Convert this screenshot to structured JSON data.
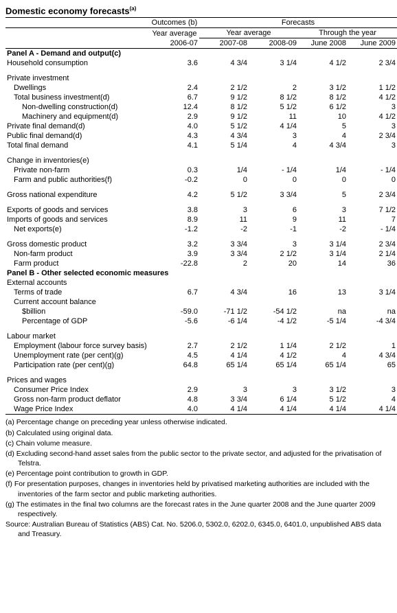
{
  "title": "Domestic economy forecasts",
  "title_sup": "(a)",
  "header": {
    "outcomes": "Outcomes (b)",
    "forecasts": "Forecasts",
    "year_average": "Year average",
    "through_year": "Through the year",
    "y06_07": "2006-07",
    "y07_08": "2007-08",
    "y08_09": "2008-09",
    "jun08": "June 2008",
    "jun09": "June 2009"
  },
  "panelA": "Panel A - Demand and output(c)",
  "panelB": "Panel B - Other selected economic measures",
  "rows": {
    "household_consumption": {
      "label": "Household consumption",
      "v": [
        "3.6",
        "4 3/4",
        "3 1/4",
        "4 1/2",
        "2 3/4"
      ]
    },
    "private_investment": {
      "label": "Private investment"
    },
    "dwellings": {
      "label": "Dwellings",
      "v": [
        "2.4",
        "2 1/2",
        "2",
        "3 1/2",
        "1 1/2"
      ]
    },
    "total_business_investment": {
      "label": "Total business investment(d)",
      "v": [
        "6.7",
        "9 1/2",
        "8 1/2",
        "8 1/2",
        "4 1/2"
      ]
    },
    "non_dwelling_construction": {
      "label": "Non-dwelling construction(d)",
      "v": [
        "12.4",
        "8 1/2",
        "5 1/2",
        "6 1/2",
        "3"
      ]
    },
    "machinery_equipment": {
      "label": "Machinery and equipment(d)",
      "v": [
        "2.9",
        "9 1/2",
        "11",
        "10",
        "4 1/2"
      ]
    },
    "private_final_demand": {
      "label": "Private final demand(d)",
      "v": [
        "4.0",
        "5 1/2",
        "4 1/4",
        "5",
        "3"
      ]
    },
    "public_final_demand": {
      "label": "Public final demand(d)",
      "v": [
        "4.3",
        "4 3/4",
        "3",
        "4",
        "2 3/4"
      ]
    },
    "total_final_demand": {
      "label": "Total final demand",
      "v": [
        "4.1",
        "5 1/4",
        "4",
        "4 3/4",
        "3"
      ]
    },
    "change_inventories": {
      "label": "Change in inventories(e)"
    },
    "private_non_farm": {
      "label": "Private non-farm",
      "v": [
        "0.3",
        "1/4",
        "- 1/4",
        "1/4",
        "- 1/4"
      ]
    },
    "farm_public": {
      "label": "Farm and public authorities(f)",
      "v": [
        "-0.2",
        "0",
        "0",
        "0",
        "0"
      ]
    },
    "gne": {
      "label": "Gross national expenditure",
      "v": [
        "4.2",
        "5 1/2",
        "3 3/4",
        "5",
        "2 3/4"
      ]
    },
    "exports": {
      "label": "Exports of goods and services",
      "v": [
        "3.8",
        "3",
        "6",
        "3",
        "7 1/2"
      ]
    },
    "imports": {
      "label": "Imports of goods and services",
      "v": [
        "8.9",
        "11",
        "9",
        "11",
        "7"
      ]
    },
    "net_exports": {
      "label": "Net exports(e)",
      "v": [
        "-1.2",
        "-2",
        "-1",
        "-2",
        "- 1/4"
      ]
    },
    "gdp": {
      "label": "Gross domestic product",
      "v": [
        "3.2",
        "3 3/4",
        "3",
        "3 1/4",
        "2 3/4"
      ]
    },
    "non_farm_product": {
      "label": "Non-farm product",
      "v": [
        "3.9",
        "3 3/4",
        "2 1/2",
        "3 1/4",
        "2 1/4"
      ]
    },
    "farm_product": {
      "label": "Farm product",
      "v": [
        "-22.8",
        "2",
        "20",
        "14",
        "36"
      ]
    },
    "external_accounts": {
      "label": "External accounts"
    },
    "terms_of_trade": {
      "label": "Terms of trade",
      "v": [
        "6.7",
        "4 3/4",
        "16",
        "13",
        "3 1/4"
      ]
    },
    "cab": {
      "label": "Current account balance"
    },
    "cab_billion": {
      "label": "$billion",
      "v": [
        "-59.0",
        "-71 1/2",
        "-54 1/2",
        "na",
        "na"
      ]
    },
    "cab_pct_gdp": {
      "label": "Percentage of GDP",
      "v": [
        "-5.6",
        "-6 1/4",
        "-4 1/2",
        "-5 1/4",
        "-4 3/4"
      ]
    },
    "labour_market": {
      "label": "Labour market"
    },
    "employment": {
      "label": "Employment (labour force survey basis)",
      "v": [
        "2.7",
        "2 1/2",
        "1 1/4",
        "2 1/2",
        "1"
      ]
    },
    "unemployment": {
      "label": "Unemployment rate (per cent)(g)",
      "v": [
        "4.5",
        "4 1/4",
        "4 1/2",
        "4",
        "4 3/4"
      ]
    },
    "participation": {
      "label": "Participation rate (per cent)(g)",
      "v": [
        "64.8",
        "65 1/4",
        "65 1/4",
        "65 1/4",
        "65"
      ]
    },
    "prices_wages": {
      "label": "Prices and wages"
    },
    "cpi": {
      "label": "Consumer Price Index",
      "v": [
        "2.9",
        "3",
        "3",
        "3 1/2",
        "3"
      ]
    },
    "deflator": {
      "label": "Gross non-farm product deflator",
      "v": [
        "4.8",
        "3 3/4",
        "6 1/4",
        "5 1/2",
        "4"
      ]
    },
    "wpi": {
      "label": "Wage Price Index",
      "v": [
        "4.0",
        "4 1/4",
        "4 1/4",
        "4 1/4",
        "4 1/4"
      ]
    }
  },
  "notes": {
    "a": "(a) Percentage change on preceding year unless otherwise indicated.",
    "b": "(b) Calculated using original data.",
    "c": "(c) Chain volume measure.",
    "d": "(d) Excluding second-hand asset sales from the public sector to the private sector, and adjusted for the privatisation of Telstra.",
    "e": "(e) Percentage point contribution to growth in GDP.",
    "f": "(f) For presentation purposes, changes in inventories held by privatised marketing authorities are included with the inventories of the farm sector and public marketing authorities.",
    "g": "(g) The estimates in the final two columns are the forecast rates in the June quarter 2008 and the June quarter 2009 respectively.",
    "source": "Source: Australian Bureau of Statistics (ABS) Cat. No. 5206.0, 5302.0, 6202.0, 6345.0, 6401.0, unpublished ABS data and Treasury."
  },
  "col_widths": [
    "210px",
    "72px",
    "72px",
    "72px",
    "72px",
    "72px"
  ]
}
